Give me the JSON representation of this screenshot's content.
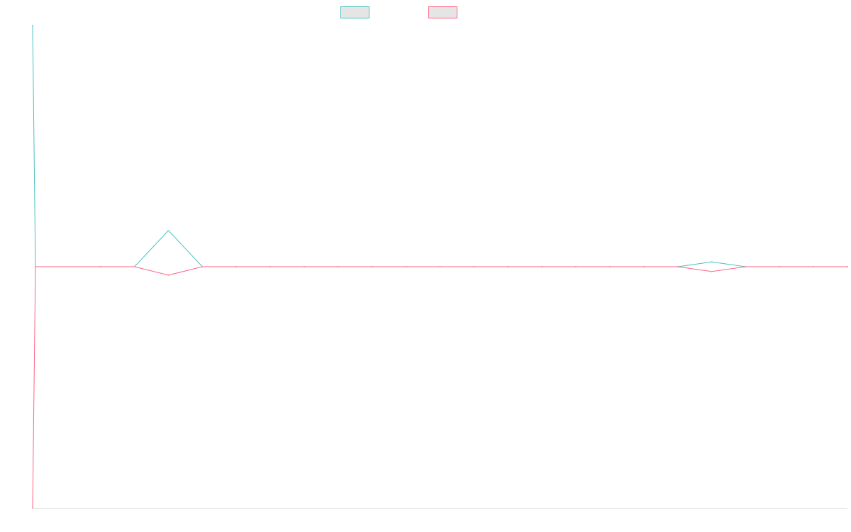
{
  "chart_data": {
    "type": "line",
    "title": "",
    "xlabel": "",
    "ylabel": "",
    "grid": false,
    "legend_position": "top-center",
    "x": [
      1,
      2,
      3,
      4,
      5,
      6,
      7,
      8,
      9,
      10,
      11,
      12,
      13,
      14,
      15,
      16,
      17,
      18,
      19,
      20,
      21,
      22,
      23,
      24,
      25
    ],
    "ylim": [
      -1,
      1
    ],
    "series": [
      {
        "color": "#4bc0c0",
        "fill": "#e5e5e5",
        "values": [
          1,
          0,
          0,
          0,
          0.15,
          0,
          0,
          0,
          0,
          0,
          0,
          0,
          0,
          0,
          0,
          0,
          0,
          0,
          0,
          0,
          0.02,
          0,
          0,
          0,
          0
        ]
      },
      {
        "color": "#ff6384",
        "fill": "#e5e5e5",
        "values": [
          -1,
          0,
          0,
          0,
          -0.035,
          0,
          0,
          0,
          0,
          0,
          0,
          0,
          0,
          0,
          0,
          0,
          0,
          0,
          0,
          0,
          -0.02,
          0,
          0,
          0,
          0
        ]
      }
    ]
  }
}
